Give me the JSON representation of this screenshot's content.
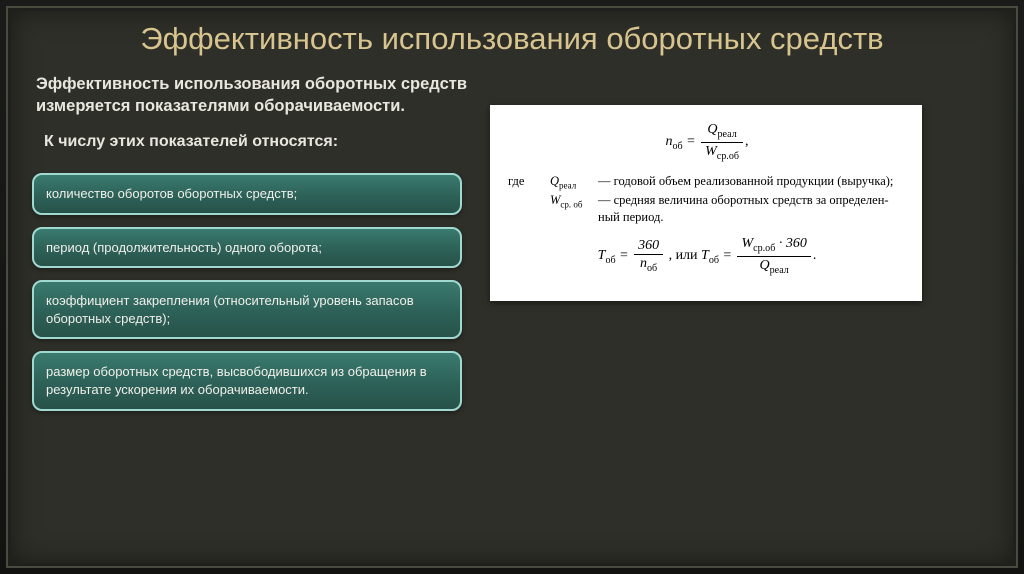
{
  "colors": {
    "frame_bg": "#2e2f28",
    "frame_border": "#4a4b40",
    "title_color": "#d8c48f",
    "body_text_color": "#e8e6df",
    "pill_border": "#9fd9d0",
    "pill_bg_top": "#3a7a6e",
    "pill_bg_bottom": "#275249",
    "formula_bg": "#ffffff"
  },
  "title": "Эффективность использования оборотных средств",
  "intro": "Эффективность использования оборотных средств измеряется показателями оборачиваемости.",
  "sub_heading": "К числу этих показателей относятся:",
  "pills": [
    "количество оборотов оборотных средств;",
    "период (продолжительность) одного оборота;",
    "коэффициент закрепления (относительный уровень запасов оборотных средств);",
    "размер оборотных средств, высвободившихся из обращения в результате ускорения их оборачиваемости."
  ],
  "formula": {
    "n_label": "n",
    "n_sub": "об",
    "eq": " = ",
    "q_label": "Q",
    "q_sub": "реал",
    "w_label": "W",
    "w_sub": "ср.об",
    "comma": ",",
    "where_word": "где",
    "where1_sym_main": "Q",
    "where1_sym_sub": "реал",
    "where1_desc": "— годовой объем реализованной продукции (выручка);",
    "where2_sym_main": "W",
    "where2_sym_sub": "ср. об",
    "where2_desc": "— средняя величина оборотных средств за определен­ный период.",
    "t_label": "T",
    "t_sub": "об",
    "num360": "360",
    "or_word": ", или ",
    "mult": " · 360",
    "period": "."
  }
}
